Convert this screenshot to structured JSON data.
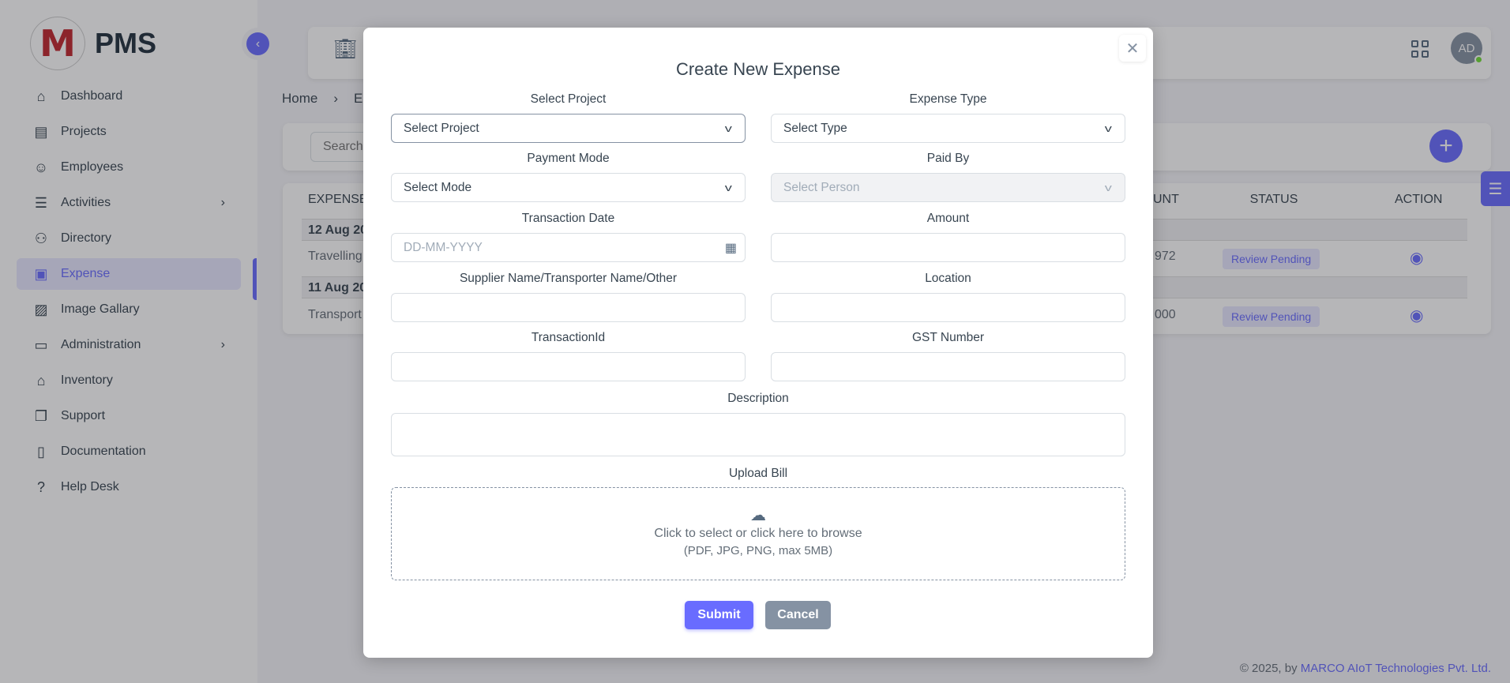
{
  "brand": {
    "name": "PMS",
    "logo_letter": "M"
  },
  "sidebar": {
    "items": [
      {
        "label": "Dashboard",
        "icon": "home-icon"
      },
      {
        "label": "Projects",
        "icon": "building-icon"
      },
      {
        "label": "Employees",
        "icon": "user-icon"
      },
      {
        "label": "Activities",
        "icon": "list-icon",
        "has_submenu": true
      },
      {
        "label": "Directory",
        "icon": "users-icon"
      },
      {
        "label": "Expense",
        "icon": "receipt-icon",
        "active": true
      },
      {
        "label": "Image Gallary",
        "icon": "gallery-icon"
      },
      {
        "label": "Administration",
        "icon": "archive-icon",
        "has_submenu": true
      },
      {
        "label": "Inventory",
        "icon": "store-icon"
      },
      {
        "label": "Support",
        "icon": "copy-icon"
      },
      {
        "label": "Documentation",
        "icon": "book-icon"
      },
      {
        "label": "Help Desk",
        "icon": "question-icon"
      }
    ]
  },
  "header": {
    "avatar": "AD"
  },
  "breadcrumb": {
    "home": "Home",
    "current": "E"
  },
  "search": {
    "placeholder": "Search"
  },
  "table": {
    "headers": {
      "expense": "EXPENSE",
      "amount": "UNT",
      "status": "STATUS",
      "action": "ACTION"
    },
    "groups": [
      {
        "date": "12 Aug 20",
        "rows": [
          {
            "type": "Travelling",
            "amount": "972",
            "status": "Review Pending"
          }
        ]
      },
      {
        "date": "11 Aug 20",
        "rows": [
          {
            "type": "Transport",
            "amount": "000",
            "status": "Review Pending"
          }
        ]
      }
    ]
  },
  "footer": {
    "prefix": "© 2025, by ",
    "company": "MARCO AIoT Technologies Pvt. Ltd."
  },
  "modal": {
    "title": "Create New Expense",
    "close": "✕",
    "fields": {
      "project": {
        "label": "Select Project",
        "value": "Select Project"
      },
      "expense_type": {
        "label": "Expense Type",
        "value": "Select Type"
      },
      "payment_mode": {
        "label": "Payment Mode",
        "value": "Select Mode"
      },
      "paid_by": {
        "label": "Paid By",
        "value": "Select Person",
        "disabled": true
      },
      "transaction_date": {
        "label": "Transaction Date",
        "placeholder": "DD-MM-YYYY"
      },
      "amount": {
        "label": "Amount",
        "value": ""
      },
      "supplier": {
        "label": "Supplier Name/Transporter Name/Other",
        "value": ""
      },
      "location": {
        "label": "Location",
        "value": ""
      },
      "transaction_id": {
        "label": "TransactionId",
        "value": ""
      },
      "gst": {
        "label": "GST Number",
        "value": ""
      },
      "description": {
        "label": "Description",
        "value": ""
      }
    },
    "upload": {
      "label": "Upload Bill",
      "line1": "Click to select or click here to browse",
      "line2": "(PDF, JPG, PNG, max 5MB)"
    },
    "submit": "Submit",
    "cancel": "Cancel"
  },
  "colors": {
    "accent": "#696cff",
    "secondary": "#8592a3",
    "badge_bg": "#e7e7ff"
  }
}
